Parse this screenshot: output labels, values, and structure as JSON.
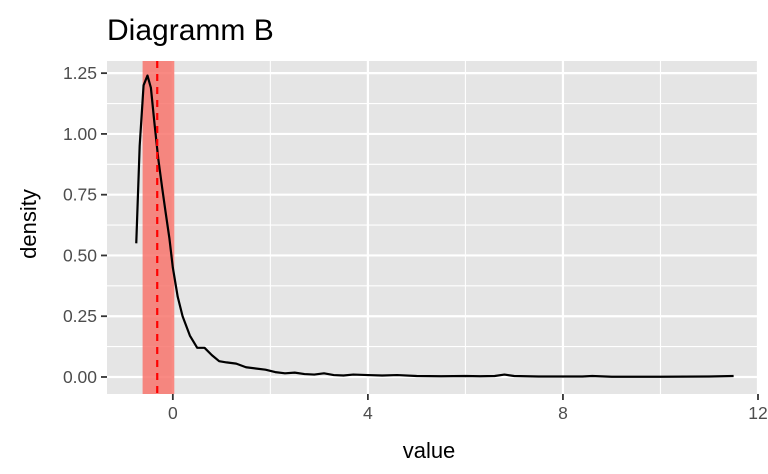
{
  "chart_data": {
    "type": "area",
    "title": "Diagramm B",
    "xlabel": "value",
    "ylabel": "density",
    "xlim": [
      -1.35,
      12.0
    ],
    "ylim": [
      -0.07,
      1.3
    ],
    "x_ticks": [
      {
        "value": 0,
        "label": "0"
      },
      {
        "value": 4,
        "label": "4"
      },
      {
        "value": 8,
        "label": "8"
      },
      {
        "value": 12,
        "label": "12"
      }
    ],
    "y_ticks": [
      {
        "value": 0.0,
        "label": "0.00"
      },
      {
        "value": 0.25,
        "label": "0.25"
      },
      {
        "value": 0.5,
        "label": "0.50"
      },
      {
        "value": 0.75,
        "label": "0.75"
      },
      {
        "value": 1.0,
        "label": "1.00"
      },
      {
        "value": 1.25,
        "label": "1.25"
      }
    ],
    "grid": true,
    "shaded_band": {
      "xmin": -0.62,
      "xmax": 0.03,
      "color": "#f8766d"
    },
    "vline": {
      "x": -0.32,
      "color": "#ff0000",
      "style": "dashed"
    },
    "series": [
      {
        "color": "#000000",
        "x": [
          -0.75,
          -0.68,
          -0.6,
          -0.52,
          -0.45,
          -0.38,
          -0.3,
          -0.22,
          -0.15,
          -0.07,
          0.0,
          0.1,
          0.2,
          0.35,
          0.5,
          0.65,
          0.8,
          0.95,
          1.1,
          1.3,
          1.5,
          1.7,
          1.9,
          2.1,
          2.3,
          2.5,
          2.7,
          2.9,
          3.1,
          3.3,
          3.5,
          3.7,
          4.0,
          4.3,
          4.6,
          5.0,
          5.5,
          6.0,
          6.3,
          6.6,
          6.8,
          7.0,
          7.5,
          8.0,
          8.4,
          8.6,
          9.0,
          10.0,
          11.0,
          11.5
        ],
        "y": [
          0.55,
          0.95,
          1.2,
          1.24,
          1.19,
          1.05,
          0.9,
          0.78,
          0.68,
          0.57,
          0.45,
          0.33,
          0.25,
          0.17,
          0.12,
          0.12,
          0.09,
          0.065,
          0.06,
          0.055,
          0.04,
          0.035,
          0.03,
          0.02,
          0.015,
          0.018,
          0.012,
          0.01,
          0.015,
          0.008,
          0.006,
          0.01,
          0.008,
          0.006,
          0.008,
          0.004,
          0.003,
          0.004,
          0.003,
          0.004,
          0.01,
          0.004,
          0.002,
          0.002,
          0.002,
          0.004,
          0.001,
          0.001,
          0.002,
          0.004
        ]
      }
    ]
  }
}
